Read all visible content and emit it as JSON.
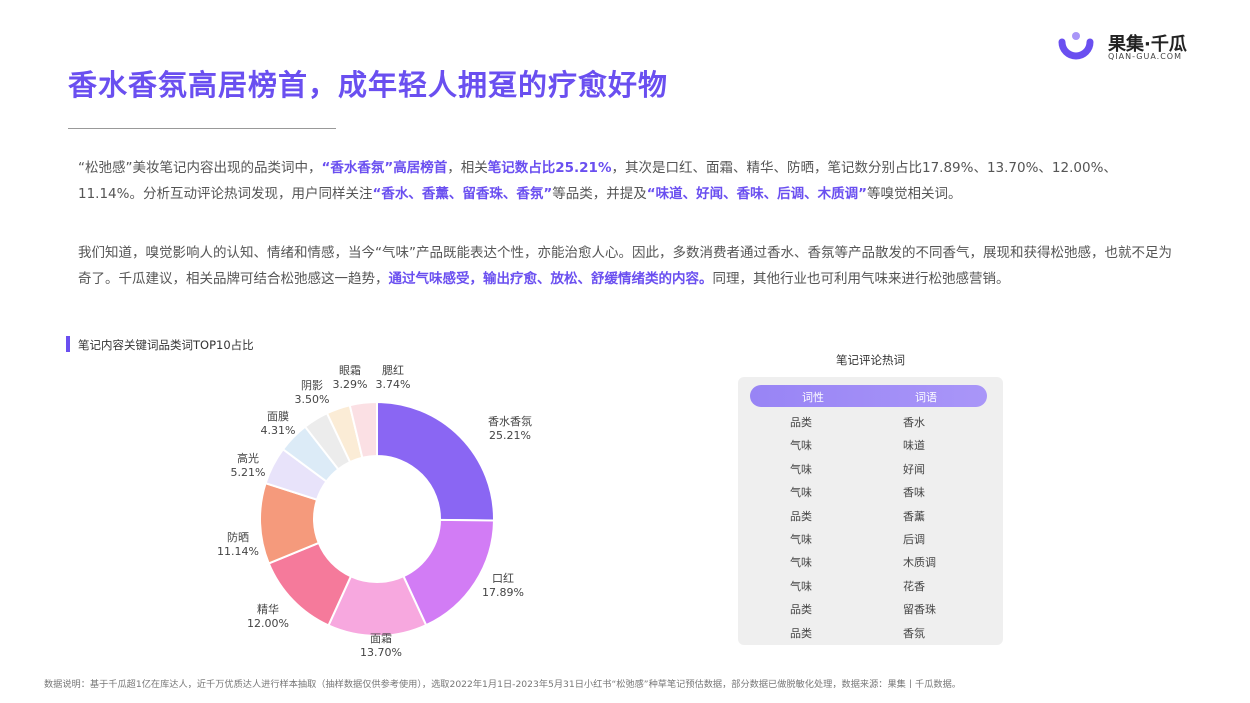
{
  "page": {
    "title": "香水香氛高居榜首，成年轻人拥趸的疗愈好物",
    "logo": {
      "name": "果集·千瓜",
      "sub": "QIAN-GUA.COM",
      "icon": "qiangua-logo-icon"
    },
    "paragraph1": [
      {
        "text": "“松弛感”美妆笔记内容出现的品类词中，",
        "hl": false
      },
      {
        "text": "“香水香氛”高居榜首",
        "hl": true
      },
      {
        "text": "，相关",
        "hl": false
      },
      {
        "text": "笔记数占比25.21%",
        "hl": true
      },
      {
        "text": "，其次是口红、面霜、精华、防晒，笔记数分别占比17.89%、13.70%、12.00%、11.14%。分析互动评论热词发现，用户同样关注",
        "hl": false
      },
      {
        "text": "“香水、香薰、留香珠、香氛”",
        "hl": true
      },
      {
        "text": "等品类，并提及",
        "hl": false
      },
      {
        "text": "“味道、好闻、香味、后调、木质调”",
        "hl": true
      },
      {
        "text": "等嗅觉相关词。",
        "hl": false
      }
    ],
    "paragraph2": [
      {
        "text": "我们知道，嗅觉影响人的认知、情绪和情感，当今“气味”产品既能表达个性，亦能治愈人心。因此，多数消费者通过香水、香氛等产品散发的不同香气，展现和获得松弛感，也就不足为奇了。千瓜建议，相关品牌可结合松弛感这一趋势，",
        "hl": false
      },
      {
        "text": "通过气味感受，输出疗愈、放松、舒缓情绪类的内容。",
        "hl": true
      },
      {
        "text": "同理，其他行业也可利用气味来进行松弛感营销。",
        "hl": false
      }
    ],
    "footer": "数据说明：基于千瓜超1亿在库达人，近千万优质达人进行样本抽取（抽样数据仅供参考使用），选取2022年1月1日-2023年5月31日小红书“松弛感”种草笔记预估数据，部分数据已做脱敏化处理，数据来源：果集丨千瓜数据。"
  },
  "chart_data": {
    "type": "pie",
    "title": "笔记内容关键词品类词TOP10占比",
    "categories": [
      "香水香氛",
      "口红",
      "面霜",
      "精华",
      "防晒",
      "高光",
      "面膜",
      "阴影",
      "眼霜",
      "腮红"
    ],
    "values": [
      25.21,
      17.89,
      13.7,
      12.0,
      11.14,
      5.21,
      4.31,
      3.5,
      3.29,
      3.74
    ],
    "labels": [
      "25.21%",
      "17.89%",
      "13.70%",
      "12.00%",
      "11.14%",
      "5.21%",
      "4.31%",
      "3.50%",
      "3.29%",
      "3.74%"
    ],
    "colors": [
      "#8a66f3",
      "#d27cf5",
      "#f7a8df",
      "#f57a9b",
      "#f59a7c",
      "#e8e3fa",
      "#dcebf7",
      "#ececec",
      "#fbecd6",
      "#fbe0e4"
    ]
  },
  "table": {
    "title": "笔记评论热词",
    "headers": [
      "词性",
      "词语"
    ],
    "rows": [
      [
        "品类",
        "香水"
      ],
      [
        "气味",
        "味道"
      ],
      [
        "气味",
        "好闻"
      ],
      [
        "气味",
        "香味"
      ],
      [
        "品类",
        "香薰"
      ],
      [
        "气味",
        "后调"
      ],
      [
        "气味",
        "木质调"
      ],
      [
        "气味",
        "花香"
      ],
      [
        "品类",
        "留香珠"
      ],
      [
        "品类",
        "香氛"
      ]
    ],
    "header_color": "#9884f5"
  }
}
